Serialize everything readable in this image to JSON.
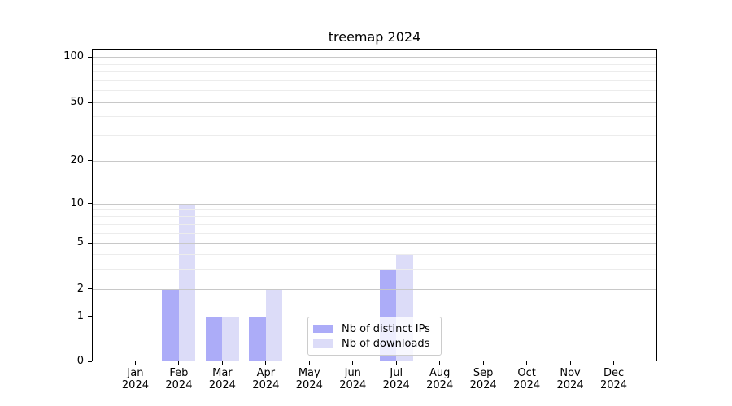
{
  "chart_data": {
    "type": "bar",
    "title": "treemap 2024",
    "xlabel": "",
    "ylabel": "",
    "categories": [
      "Jan 2024",
      "Feb 2024",
      "Mar 2024",
      "Apr 2024",
      "May 2024",
      "Jun 2024",
      "Jul 2024",
      "Aug 2024",
      "Sep 2024",
      "Oct 2024",
      "Nov 2024",
      "Dec 2024"
    ],
    "series": [
      {
        "name": "Nb of distinct IPs",
        "color": "#acacf8",
        "values": [
          0,
          2,
          1,
          1,
          0,
          0,
          3,
          0,
          0,
          0,
          0,
          0
        ]
      },
      {
        "name": "Nb of downloads",
        "color": "#dcdcf8",
        "values": [
          0,
          10,
          1,
          2,
          0,
          0,
          4,
          0,
          0,
          0,
          0,
          0
        ]
      }
    ],
    "yscale": "symlog",
    "ylim": [
      0,
      114
    ],
    "y_major_ticks": [
      0,
      1,
      2,
      5,
      10,
      20,
      50,
      100
    ],
    "y_minor_ticks": [
      3,
      4,
      6,
      7,
      8,
      9,
      30,
      40,
      60,
      70,
      80,
      90
    ],
    "grid": true,
    "legend": {
      "position": "lower center",
      "entries": [
        "Nb of distinct IPs",
        "Nb of downloads"
      ]
    }
  },
  "colors": {
    "bar_dark": "#acacf8",
    "bar_light": "#dcdcf8",
    "grid_major": "#c8c8c8",
    "grid_minor": "#ececec",
    "axis": "#000000",
    "legend_border": "#cccccc"
  }
}
